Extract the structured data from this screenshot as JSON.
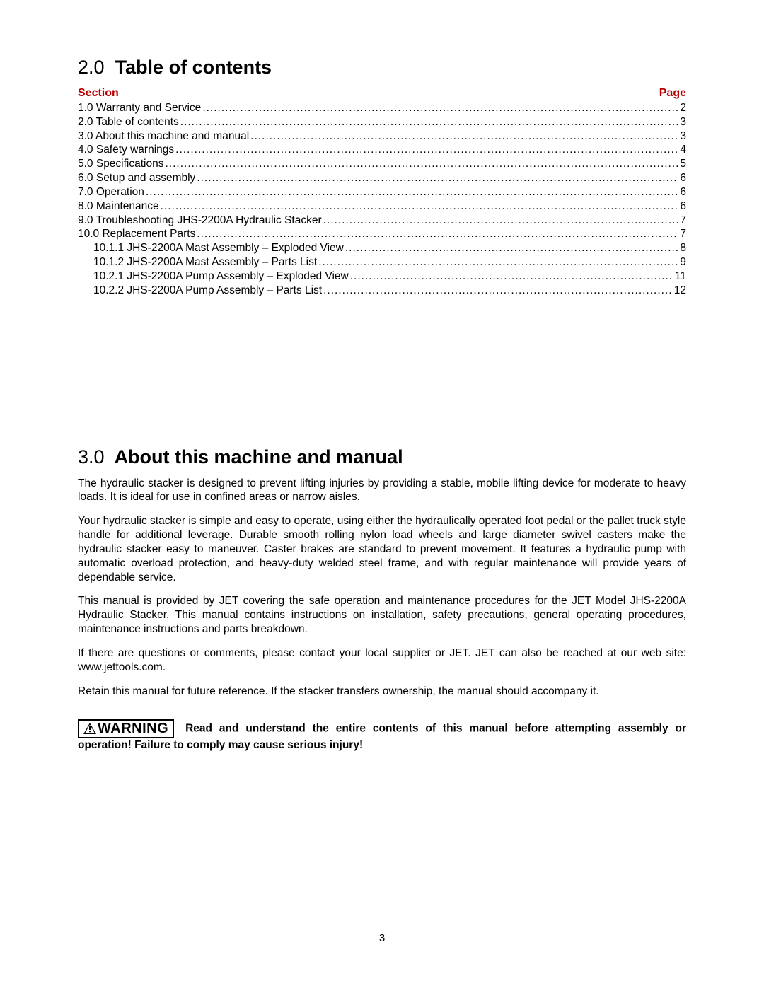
{
  "colors": {
    "text": "#000000",
    "accent": "#b80000",
    "background": "#ffffff"
  },
  "fonts": {
    "family": "Arial",
    "heading_size_pt": 20,
    "body_size_pt": 11.5
  },
  "toc_section": {
    "heading_number": "2.0",
    "heading_title": "Table of contents",
    "header_left": "Section",
    "header_right": "Page",
    "entries": [
      {
        "label": "1.0  Warranty and Service",
        "page": "2",
        "indent": false
      },
      {
        "label": "2.0  Table of contents",
        "page": "3",
        "indent": false
      },
      {
        "label": "3.0  About this machine and manual",
        "page": "3",
        "indent": false
      },
      {
        "label": "4.0  Safety warnings",
        "page": "4",
        "indent": false
      },
      {
        "label": "5.0  Specifications",
        "page": "5",
        "indent": false
      },
      {
        "label": "6.0  Setup and assembly",
        "page": "6",
        "indent": false
      },
      {
        "label": "7.0  Operation",
        "page": "6",
        "indent": false
      },
      {
        "label": "8.0  Maintenance",
        "page": "6",
        "indent": false
      },
      {
        "label": "9.0  Troubleshooting  JHS-2200A Hydraulic Stacker",
        "page": "7",
        "indent": false
      },
      {
        "label": "10.0  Replacement Parts",
        "page": "7",
        "indent": false
      },
      {
        "label": "10.1.1  JHS-2200A Mast Assembly – Exploded View",
        "page": "8",
        "indent": true
      },
      {
        "label": "10.1.2  JHS-2200A Mast Assembly – Parts List",
        "page": "9",
        "indent": true
      },
      {
        "label": "10.2.1  JHS-2200A Pump Assembly – Exploded View",
        "page": "11",
        "indent": true
      },
      {
        "label": "10.2.2  JHS-2200A Pump Assembly – Parts List",
        "page": "12",
        "indent": true
      }
    ]
  },
  "about_section": {
    "heading_number": "3.0",
    "heading_title": "About this machine and manual",
    "paragraphs": [
      "The hydraulic stacker is designed to prevent lifting injuries by providing a stable, mobile lifting device for moderate to heavy loads. It is ideal for use in confined areas or narrow aisles.",
      "Your hydraulic stacker is simple and easy to operate, using either the hydraulically operated foot pedal or the pallet truck style handle for additional leverage. Durable smooth rolling nylon load wheels and large diameter swivel casters make the hydraulic stacker easy to maneuver. Caster brakes are standard to prevent movement. It features a hydraulic pump with automatic overload protection, and heavy-duty welded steel frame, and with regular maintenance will provide years of dependable service.",
      "This manual is provided by JET covering the safe operation and maintenance procedures for the JET Model JHS-2200A Hydraulic Stacker. This manual contains instructions on installation, safety precautions, general operating procedures, maintenance instructions and parts breakdown.",
      "If there are questions or comments, please contact your local supplier or JET. JET can also be reached at our web site: www.jettools.com.",
      "Retain this manual for future reference. If the stacker transfers ownership, the manual should accompany it."
    ]
  },
  "warning": {
    "badge": "WARNING",
    "text": "Read and understand the entire contents of this manual before attempting assembly or operation!  Failure to comply may cause serious injury!"
  },
  "page_number": "3"
}
